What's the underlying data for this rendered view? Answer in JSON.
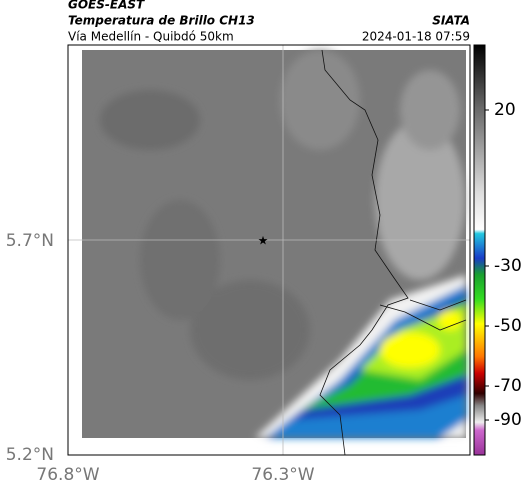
{
  "header": {
    "source": "GOES-EAST",
    "title": "Temperatura de Brillo CH13",
    "org": "SIATA",
    "subtitle": "Vía Medellín - Quibdó 50km",
    "datetime": "2024-01-18 07:59"
  },
  "axes": {
    "lat_labels": [
      "5.7°N",
      "5.2°N"
    ],
    "lon_labels": [
      "76.8°W",
      "76.3°W"
    ]
  },
  "colorbar": {
    "ticks": [
      20,
      -30,
      -50,
      -70,
      -90
    ]
  }
}
